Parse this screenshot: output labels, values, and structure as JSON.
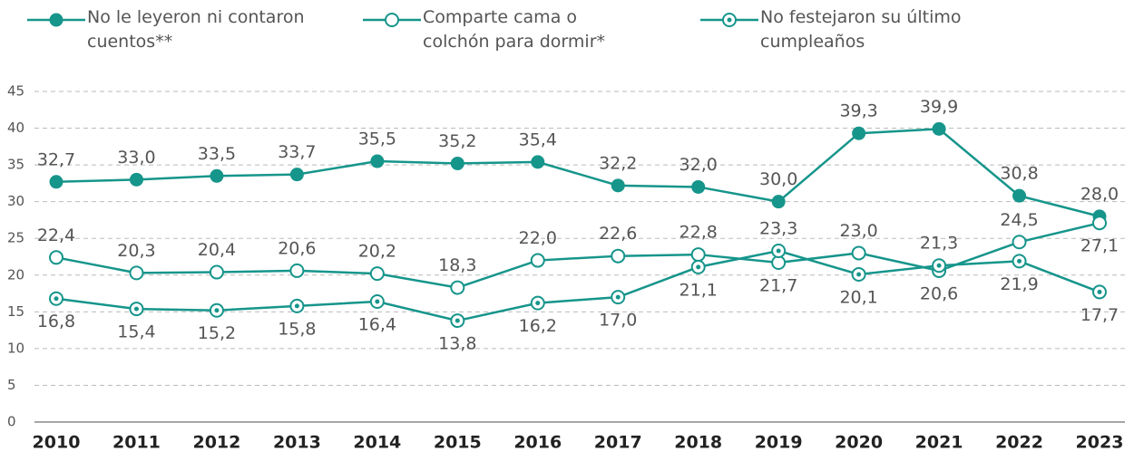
{
  "chart_data": {
    "type": "line",
    "categories": [
      "2010",
      "2011",
      "2012",
      "2013",
      "2014",
      "2015",
      "2016",
      "2017",
      "2018",
      "2019",
      "2020",
      "2021",
      "2022",
      "2023"
    ],
    "series": [
      {
        "name": "No le leyeron ni contaron cuentos**",
        "color": "#16958b",
        "marker": "filled",
        "values": [
          32.7,
          33.0,
          33.5,
          33.7,
          35.5,
          35.2,
          35.4,
          32.2,
          32.0,
          30.0,
          39.3,
          39.9,
          30.8,
          28.0
        ],
        "value_labels": [
          "32,7",
          "33,0",
          "33,5",
          "33,7",
          "35,5",
          "35,2",
          "35,4",
          "32,2",
          "32,0",
          "30,0",
          "39,3",
          "39,9",
          "30,8",
          "28,0"
        ]
      },
      {
        "name": "Comparte cama o colchón para dormir*",
        "color": "#16958b",
        "marker": "hollow",
        "values": [
          22.4,
          20.3,
          20.4,
          20.6,
          20.2,
          18.3,
          22.0,
          22.6,
          22.8,
          21.7,
          23.0,
          20.6,
          24.5,
          27.1
        ],
        "value_labels": [
          "22,4",
          "20,3",
          "20,4",
          "20,6",
          "20,2",
          "18,3",
          "22,0",
          "22,6",
          "22,8",
          "21,7",
          "23,0",
          "20,6",
          "24,5",
          "27,1"
        ]
      },
      {
        "name": "No festejaron su último cumpleaños",
        "color": "#16958b",
        "marker": "dot",
        "values": [
          16.8,
          15.4,
          15.2,
          15.8,
          16.4,
          13.8,
          16.2,
          17.0,
          21.1,
          23.3,
          20.1,
          21.3,
          21.9,
          17.7
        ],
        "value_labels": [
          "16,8",
          "15,4",
          "15,2",
          "15,8",
          "16,4",
          "13,8",
          "16,2",
          "17,0",
          "21,1",
          "23,3",
          "20,1",
          "21,3",
          "21,9",
          "17,7"
        ]
      }
    ],
    "ylim": [
      0,
      45
    ],
    "yticks": [
      0,
      5,
      10,
      15,
      20,
      25,
      30,
      35,
      40,
      45
    ],
    "grid": true
  }
}
